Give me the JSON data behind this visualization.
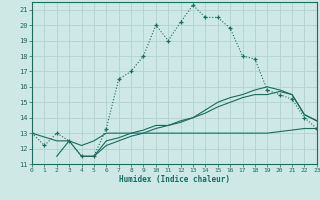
{
  "xlabel": "Humidex (Indice chaleur)",
  "bg_color": "#cde8e5",
  "grid_color": "#b0d4d0",
  "line_color": "#1a6b60",
  "xlim": [
    0,
    23
  ],
  "ylim": [
    11,
    21.5
  ],
  "yticks": [
    11,
    12,
    13,
    14,
    15,
    16,
    17,
    18,
    19,
    20,
    21
  ],
  "xticks": [
    0,
    1,
    2,
    3,
    4,
    5,
    6,
    7,
    8,
    9,
    10,
    11,
    12,
    13,
    14,
    15,
    16,
    17,
    18,
    19,
    20,
    21,
    22,
    23
  ],
  "line1_x": [
    0,
    1,
    2,
    3,
    4,
    5,
    6,
    7,
    8,
    9,
    10,
    11,
    12,
    13,
    14,
    15,
    16,
    17,
    18,
    19,
    20,
    21,
    22,
    23
  ],
  "line1_y": [
    13,
    12.2,
    13.0,
    12.5,
    11.5,
    11.5,
    13.3,
    16.5,
    17.0,
    18.0,
    20.0,
    19.0,
    20.2,
    21.3,
    20.5,
    20.5,
    19.8,
    18.0,
    17.8,
    15.8,
    15.5,
    15.2,
    14.0,
    13.3
  ],
  "line2_x": [
    0,
    2,
    3,
    4,
    5,
    6,
    7,
    8,
    9,
    10,
    11,
    12,
    13,
    14,
    15,
    16,
    17,
    18,
    19,
    20,
    21,
    22,
    23
  ],
  "line2_y": [
    13,
    12.5,
    12.5,
    12.2,
    12.5,
    13.0,
    13.0,
    13.0,
    13.0,
    13.0,
    13.0,
    13.0,
    13.0,
    13.0,
    13.0,
    13.0,
    13.0,
    13.0,
    13.0,
    13.1,
    13.2,
    13.3,
    13.3
  ],
  "line3_x": [
    2,
    3,
    4,
    5,
    6,
    7,
    8,
    9,
    10,
    11,
    12,
    13,
    14,
    15,
    16,
    17,
    18,
    19,
    20,
    21,
    22,
    23
  ],
  "line3_y": [
    11.5,
    12.5,
    11.5,
    11.5,
    12.2,
    12.5,
    12.8,
    13.0,
    13.3,
    13.5,
    13.7,
    14.0,
    14.3,
    14.7,
    15.0,
    15.3,
    15.5,
    15.5,
    15.7,
    15.5,
    14.2,
    13.8
  ],
  "line4_x": [
    4,
    5,
    6,
    7,
    8,
    9,
    10,
    11,
    12,
    13,
    14,
    15,
    16,
    17,
    18,
    19,
    20,
    21,
    22,
    23
  ],
  "line4_y": [
    11.5,
    11.5,
    12.5,
    12.7,
    13.0,
    13.2,
    13.5,
    13.5,
    13.8,
    14.0,
    14.5,
    15.0,
    15.3,
    15.5,
    15.8,
    16.0,
    15.8,
    15.5,
    14.2,
    13.8
  ]
}
